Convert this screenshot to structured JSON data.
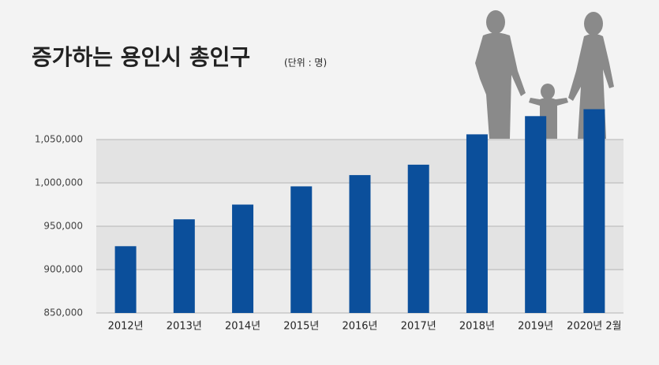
{
  "chart_data": {
    "type": "bar",
    "title": "증가하는 용인시 총인구",
    "subtitle": "(단위 : 명)",
    "categories": [
      "2012년",
      "2013년",
      "2014년",
      "2015년",
      "2016년",
      "2017년",
      "2018년",
      "2019년",
      "2020년 2월"
    ],
    "values": [
      927000,
      958000,
      975000,
      996000,
      1009000,
      1021000,
      1056000,
      1077000,
      1085000
    ],
    "color": "#0b4f9b",
    "ylim": [
      850000,
      1100000
    ],
    "yticks": [
      {
        "value": 850000,
        "label": "850,000"
      },
      {
        "value": 900000,
        "label": "900,000"
      },
      {
        "value": 950000,
        "label": "950,000"
      },
      {
        "value": 1000000,
        "label": "1,000,000"
      },
      {
        "value": 1050000,
        "label": "1,050,000"
      }
    ],
    "grid": true
  }
}
